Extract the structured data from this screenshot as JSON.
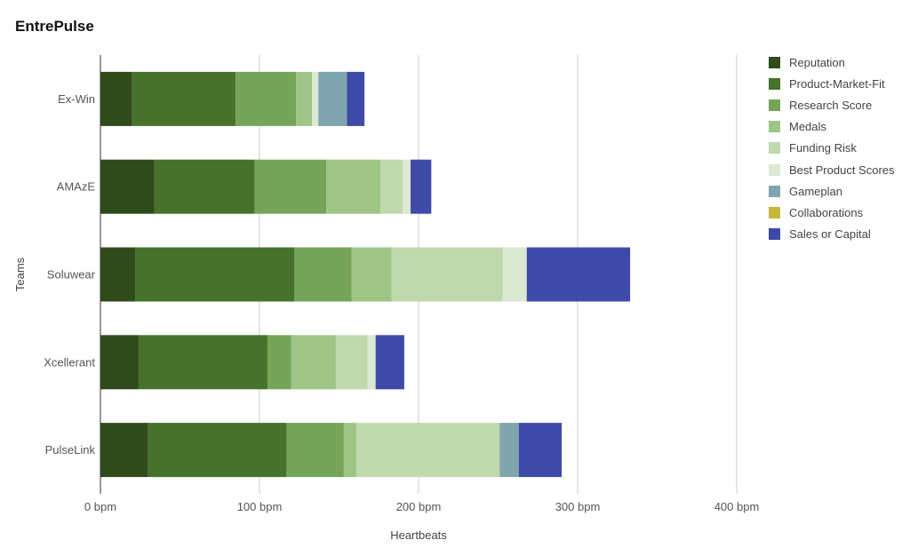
{
  "chart_data": {
    "type": "bar",
    "orientation": "horizontal",
    "stacked": true,
    "title": "EntrePulse",
    "xlabel": "Heartbeats",
    "ylabel": "Teams",
    "xlim": [
      0,
      400
    ],
    "x_ticks": [
      "0 bpm",
      "100 bpm",
      "200 bpm",
      "300 bpm",
      "400 bpm"
    ],
    "grid": "vertical",
    "legend_position": "right",
    "categories": [
      "Ex-Win",
      "AMAzE",
      "Soluwear",
      "Xcellerant",
      "PulseLink"
    ],
    "series": [
      {
        "name": "Reputation",
        "color": "#2f4b1c",
        "values": [
          20,
          34,
          22,
          24,
          30
        ]
      },
      {
        "name": "Product-Market-Fit",
        "color": "#46722b",
        "values": [
          65,
          63,
          100,
          81,
          87
        ]
      },
      {
        "name": "Research Score",
        "color": "#76a55a",
        "values": [
          38,
          45,
          36,
          15,
          36
        ]
      },
      {
        "name": "Medals",
        "color": "#9ec586",
        "values": [
          10,
          34,
          25,
          28,
          8
        ]
      },
      {
        "name": "Funding Risk",
        "color": "#bfd9ad",
        "values": [
          0,
          14,
          70,
          20,
          90
        ]
      },
      {
        "name": "Best Product Scores",
        "color": "#dbe9d2",
        "values": [
          4,
          5,
          15,
          5,
          0
        ]
      },
      {
        "name": "Gameplan",
        "color": "#80a5ae",
        "values": [
          18,
          0,
          0,
          0,
          12
        ]
      },
      {
        "name": "Collaborations",
        "color": "#c5b83a",
        "values": [
          0,
          0,
          0,
          0,
          0
        ]
      },
      {
        "name": "Sales or Capital",
        "color": "#3f4aa8",
        "values": [
          11,
          13,
          65,
          18,
          27
        ]
      }
    ]
  }
}
